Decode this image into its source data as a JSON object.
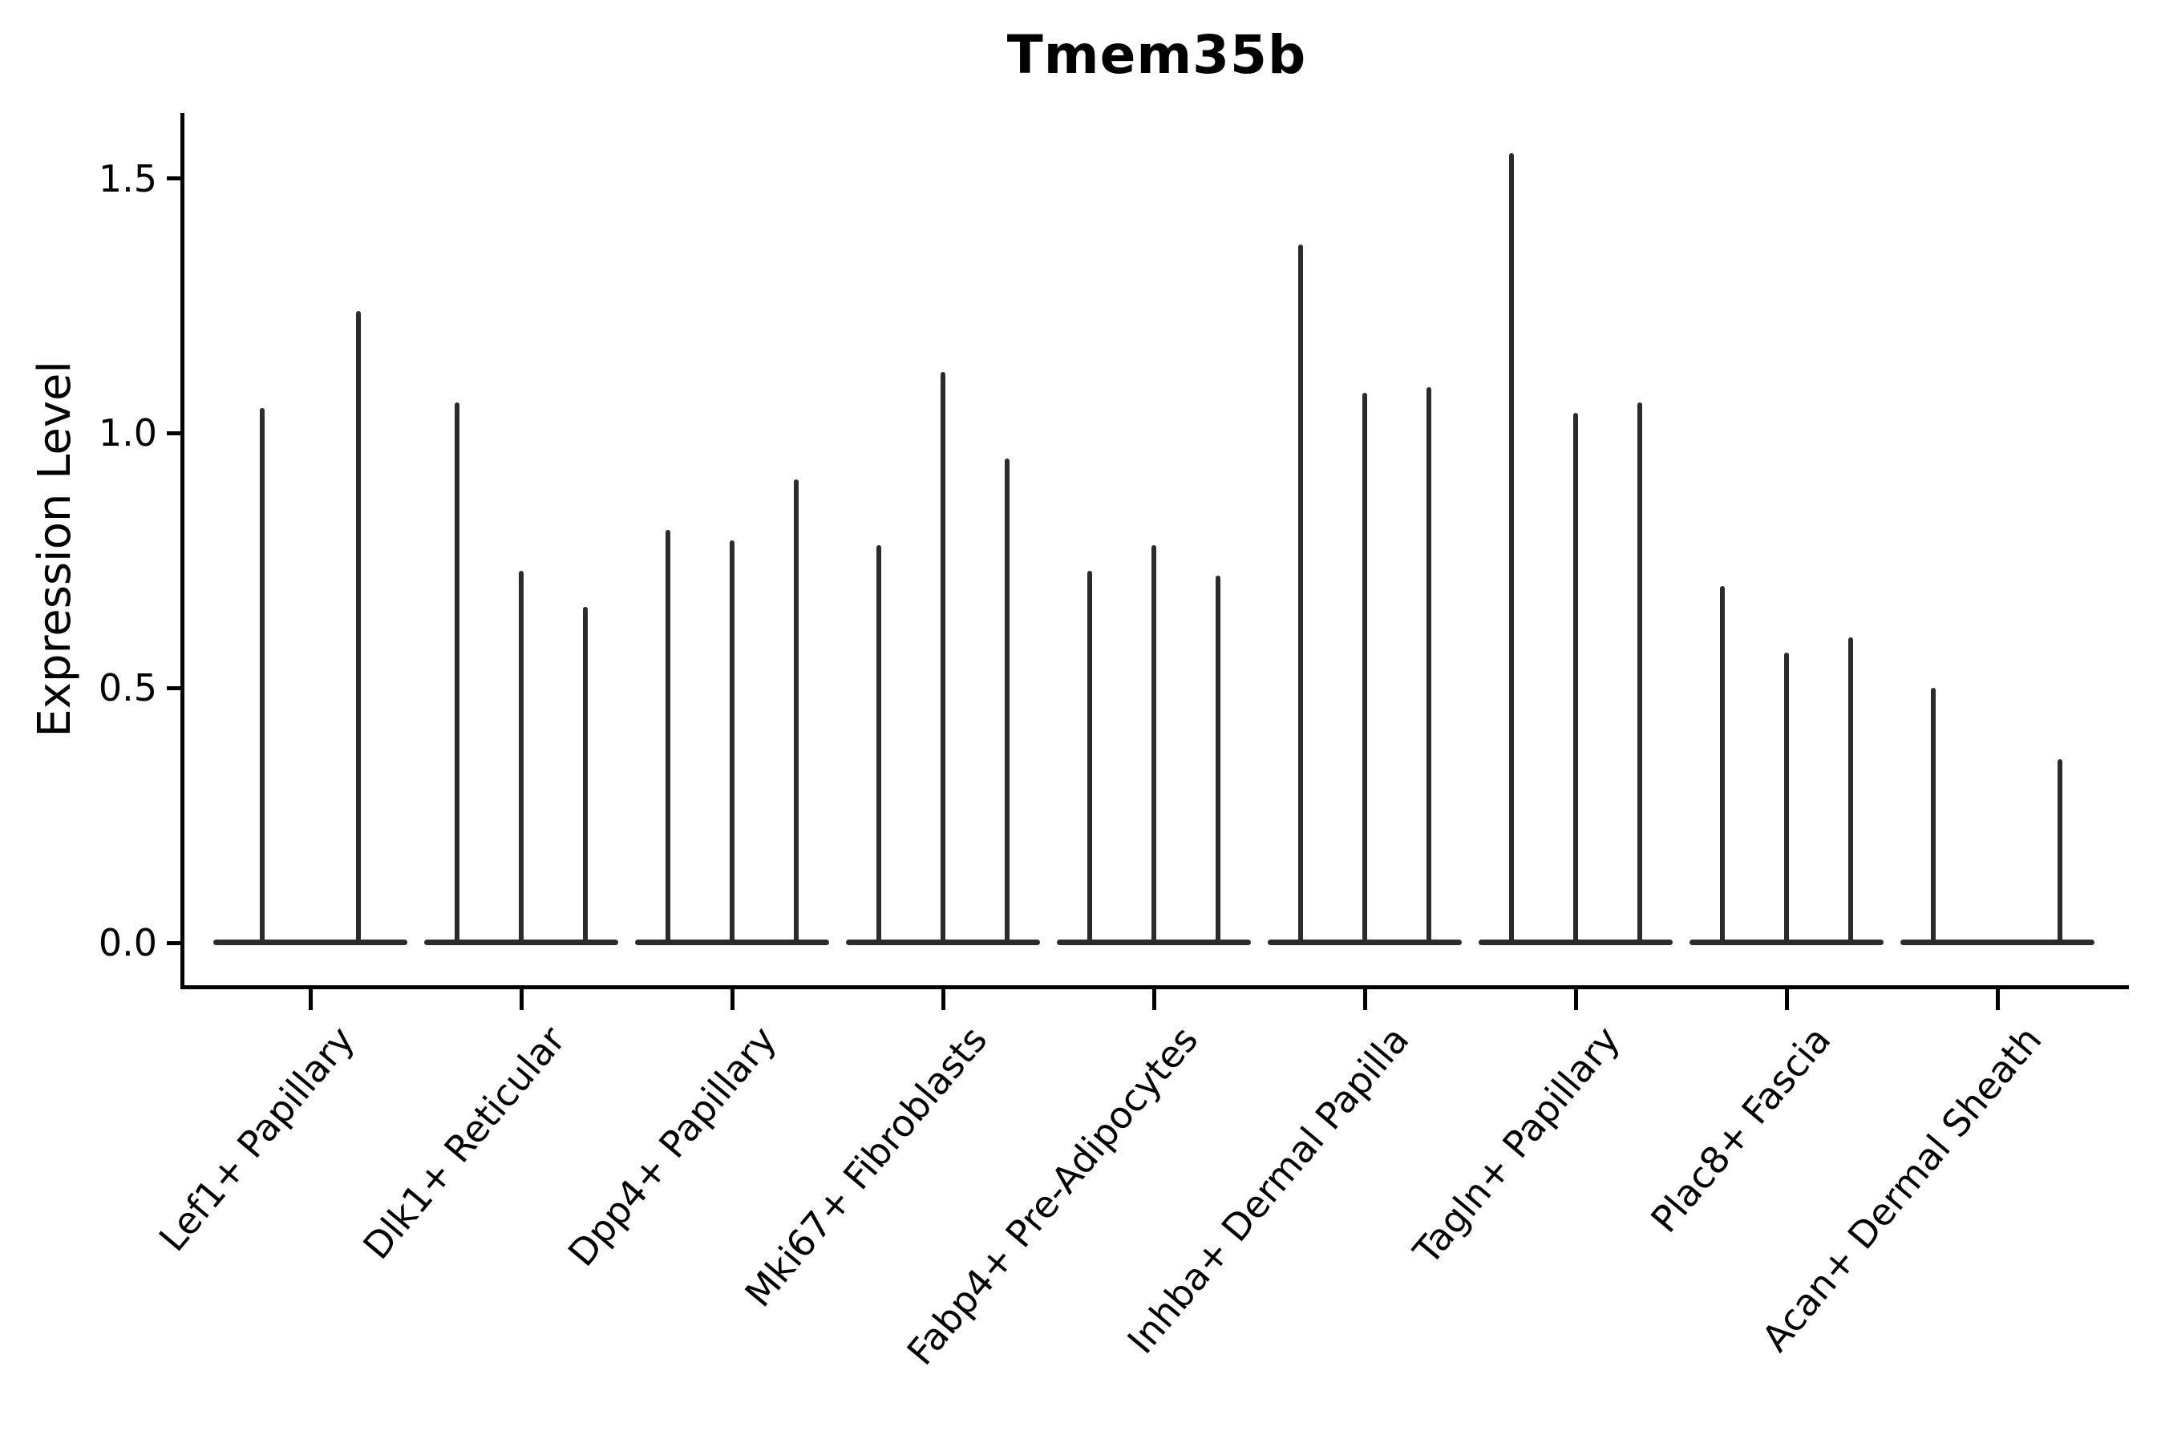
{
  "title": "Tmem35b",
  "axes": {
    "y_label": "Expression Level",
    "y_tick_labels": [
      "0.0",
      "0.5",
      "1.0",
      "1.5"
    ]
  },
  "chart_data": {
    "type": "violin",
    "title": "Tmem35b",
    "xlabel": "",
    "ylabel": "Expression Level",
    "ylim": [
      -0.09,
      1.62
    ],
    "yticks": [
      0.0,
      0.5,
      1.0,
      1.5
    ],
    "grid": false,
    "legend": "none",
    "style": "thin-spike violins (sparse expression), flat zero baseline per category",
    "colors": {
      "ink": "#000000",
      "violin": "#2b2b2b"
    },
    "categories": [
      "Lef1+ Papillary",
      "Dlk1+ Reticular",
      "Dpp4+ Papillary",
      "Mki67+ Fibroblasts",
      "Fabp4+ Pre-Adipocytes",
      "Inhba+ Dermal Papilla",
      "Tagln+ Papillary",
      "Plac8+ Fascia",
      "Acan+ Dermal Sheath"
    ],
    "series": [
      {
        "category": "Lef1+ Papillary",
        "violins": [
          {
            "offset": -60,
            "peak": 1.05
          },
          {
            "offset": 60,
            "peak": 1.24
          }
        ]
      },
      {
        "category": "Dlk1+ Reticular",
        "violins": [
          {
            "offset": -80,
            "peak": 1.06
          },
          {
            "offset": 0,
            "peak": 0.73
          },
          {
            "offset": 80,
            "peak": 0.66
          }
        ]
      },
      {
        "category": "Dpp4+ Papillary",
        "violins": [
          {
            "offset": -80,
            "peak": 0.81
          },
          {
            "offset": 0,
            "peak": 0.79
          },
          {
            "offset": 80,
            "peak": 0.91
          }
        ]
      },
      {
        "category": "Mki67+ Fibroblasts",
        "violins": [
          {
            "offset": -80,
            "peak": 0.78
          },
          {
            "offset": 0,
            "peak": 1.12
          },
          {
            "offset": 80,
            "peak": 0.95
          }
        ]
      },
      {
        "category": "Fabp4+ Pre-Adipocytes",
        "violins": [
          {
            "offset": -80,
            "peak": 0.73
          },
          {
            "offset": 0,
            "peak": 0.78
          },
          {
            "offset": 80,
            "peak": 0.72
          }
        ]
      },
      {
        "category": "Inhba+ Dermal Papilla",
        "violins": [
          {
            "offset": -80,
            "peak": 1.37
          },
          {
            "offset": 0,
            "peak": 1.08
          },
          {
            "offset": 80,
            "peak": 1.09
          }
        ]
      },
      {
        "category": "Tagln+ Papillary",
        "violins": [
          {
            "offset": -80,
            "peak": 1.55
          },
          {
            "offset": 0,
            "peak": 1.04
          },
          {
            "offset": 80,
            "peak": 1.06
          }
        ]
      },
      {
        "category": "Plac8+ Fascia",
        "violins": [
          {
            "offset": -80,
            "peak": 0.7
          },
          {
            "offset": 0,
            "peak": 0.57
          },
          {
            "offset": 80,
            "peak": 0.6
          }
        ]
      },
      {
        "category": "Acan+ Dermal Sheath",
        "violins": [
          {
            "offset": -80,
            "peak": 0.5
          },
          {
            "offset": 78,
            "peak": 0.36
          }
        ]
      }
    ]
  }
}
